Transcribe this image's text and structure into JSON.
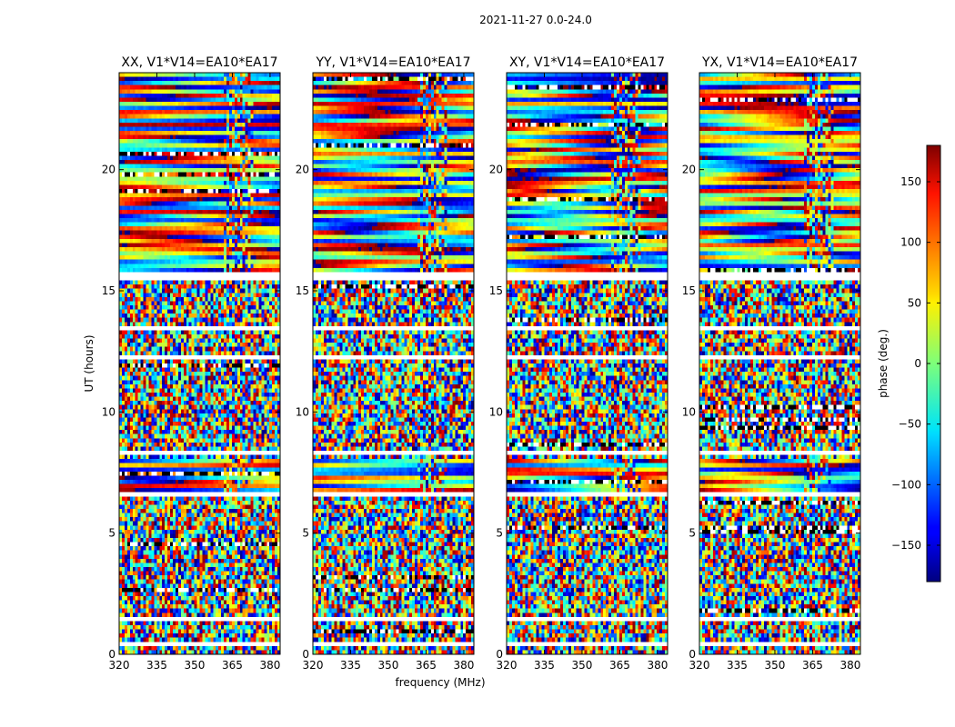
{
  "figure": {
    "suptitle": "2021-11-27 0.0-24.0",
    "xlabel": "frequency (MHz)",
    "ylabel": "UT (hours)"
  },
  "chart_data": {
    "type": "heatmap",
    "title": "2021-11-27 0.0-24.0",
    "xlabel": "frequency (MHz)",
    "ylabel": "UT (hours)",
    "xlim": [
      320,
      384
    ],
    "ylim": [
      0,
      24
    ],
    "xticks": [
      320,
      335,
      350,
      365,
      380
    ],
    "yticks": [
      0,
      5,
      10,
      15,
      20
    ],
    "panels": [
      {
        "title": "XX, V1*V14=EA10*EA17"
      },
      {
        "title": "YY, V1*V14=EA10*EA17"
      },
      {
        "title": "XY, V1*V14=EA10*EA17"
      },
      {
        "title": "YX, V1*V14=EA10*EA17"
      }
    ],
    "colorbar": {
      "label": "phase (deg.)",
      "range": [
        -180,
        180
      ],
      "ticks": [
        150,
        100,
        50,
        0,
        -50,
        -100,
        -150
      ],
      "tick_labels": [
        "150",
        "100",
        "50",
        "0",
        "−50",
        "−100",
        "−150"
      ]
    },
    "gap_bands_hours": [
      [
        0.35,
        0.45
      ],
      [
        1.45,
        1.6
      ],
      [
        3.4,
        3.5
      ],
      [
        6.6,
        6.7
      ],
      [
        8.25,
        8.4
      ],
      [
        12.2,
        12.4
      ],
      [
        13.45,
        13.6
      ],
      [
        15.5,
        15.7
      ]
    ],
    "coherent_bands_hours": [
      [
        6.7,
        8.1
      ],
      [
        15.8,
        24.0
      ]
    ]
  }
}
